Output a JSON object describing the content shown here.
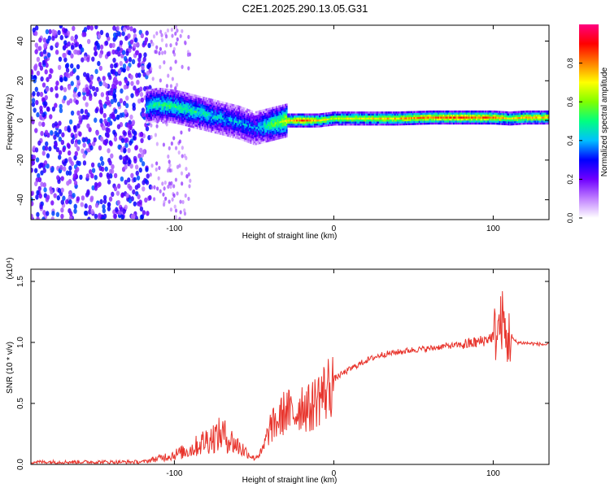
{
  "title": "C2E1.2025.290.13.05.G31",
  "chart_data": [
    {
      "type": "heatmap",
      "xlabel": "Height of straight line (km)",
      "ylabel": "Frequency (Hz)",
      "xlim": [
        -190,
        135
      ],
      "ylim": [
        -50,
        48
      ],
      "xticks": [
        -100,
        0,
        100
      ],
      "yticks": [
        -40,
        -20,
        0,
        20,
        40
      ],
      "colorbar": {
        "label": "Normalized spectral amplitude",
        "range": [
          0.0,
          1.0
        ],
        "ticks": [
          0.0,
          0.2,
          0.4,
          0.6,
          0.8
        ],
        "colors": [
          "#ffffff",
          "#c080ff",
          "#7000ff",
          "#0000ff",
          "#00c0ff",
          "#00ff80",
          "#80ff00",
          "#ffff00",
          "#ff8000",
          "#ff0000",
          "#ff0080"
        ]
      },
      "track": {
        "x": [
          -118,
          -110,
          -100,
          -90,
          -80,
          -70,
          -60,
          -50,
          -45,
          -40,
          -35,
          -30,
          -20,
          -10,
          0,
          20,
          40,
          60,
          80,
          100,
          110,
          120,
          135
        ],
        "freq": [
          7,
          8,
          7,
          5,
          3,
          1,
          -1,
          -4,
          -3,
          -2,
          -1,
          0,
          0,
          0,
          1,
          1,
          1,
          1.5,
          1.5,
          1.5,
          1,
          1.5,
          1.5
        ],
        "amplitude": [
          0.45,
          0.5,
          0.5,
          0.5,
          0.45,
          0.4,
          0.4,
          0.35,
          0.45,
          0.55,
          0.6,
          0.7,
          0.85,
          0.7,
          0.65,
          0.7,
          0.75,
          0.8,
          0.85,
          0.8,
          0.7,
          0.75,
          0.75
        ]
      },
      "noise_region": {
        "x": [
          -190,
          -115
        ],
        "freq": [
          -50,
          48
        ],
        "amplitude": 0.25
      }
    },
    {
      "type": "line",
      "xlabel": "Height of straight line (km)",
      "ylabel": "SNR (10 * v/v)",
      "ylabel_multiplier": "(x10⁴)",
      "xlim": [
        -190,
        135
      ],
      "ylim": [
        0,
        1.6
      ],
      "xticks": [
        -100,
        0,
        100
      ],
      "yticks": [
        0.0,
        0.5,
        1.0,
        1.5
      ],
      "color": "#e8352d",
      "series": [
        {
          "name": "SNR",
          "x": [
            -190,
            -160,
            -120,
            -110,
            -100,
            -90,
            -80,
            -70,
            -65,
            -60,
            -55,
            -50,
            -45,
            -40,
            -35,
            -30,
            -25,
            -20,
            -15,
            -10,
            -5,
            0,
            10,
            20,
            30,
            40,
            50,
            60,
            70,
            80,
            90,
            95,
            100,
            103,
            106,
            108,
            110,
            115,
            125,
            135
          ],
          "y": [
            0.02,
            0.02,
            0.02,
            0.05,
            0.08,
            0.12,
            0.2,
            0.25,
            0.2,
            0.15,
            0.1,
            0.05,
            0.1,
            0.3,
            0.35,
            0.45,
            0.4,
            0.5,
            0.45,
            0.55,
            0.6,
            0.7,
            0.78,
            0.85,
            0.9,
            0.92,
            0.94,
            0.95,
            0.97,
            0.98,
            1.0,
            1.02,
            1.05,
            1.1,
            1.2,
            1.0,
            1.05,
            1.0,
            0.99,
            0.98
          ]
        }
      ]
    }
  ]
}
